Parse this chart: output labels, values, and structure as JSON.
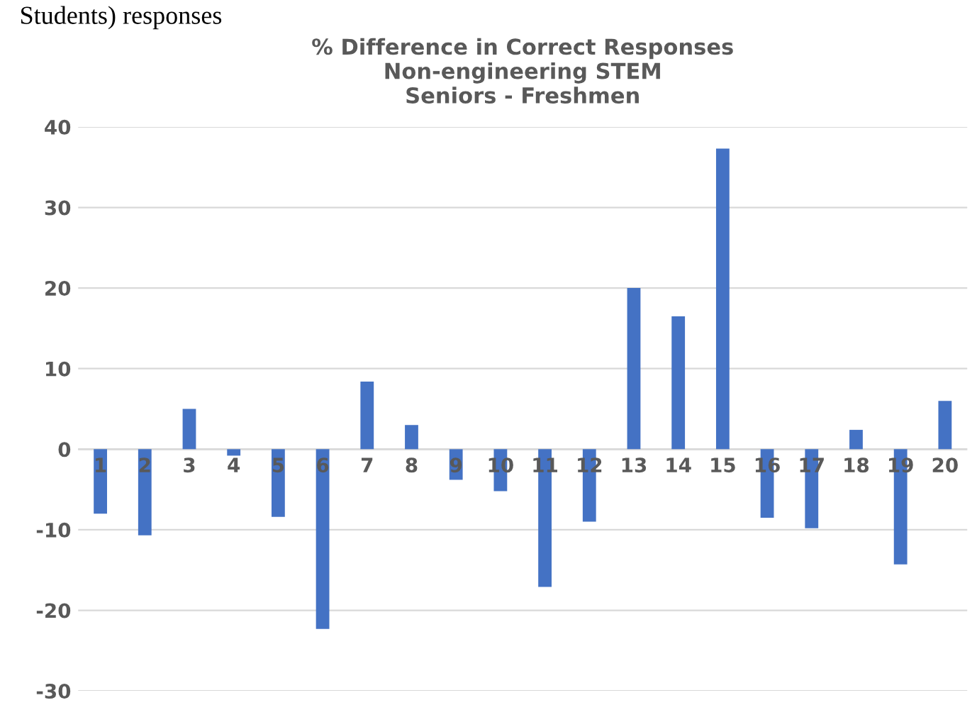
{
  "chart_data": {
    "type": "bar",
    "title": "% Difference in Correct Responses\nNon-engineering STEM\nSeniors - Freshmen",
    "annotations": [
      "Students) responses"
    ],
    "categories": [
      "1",
      "2",
      "3",
      "4",
      "5",
      "6",
      "7",
      "8",
      "9",
      "10",
      "11",
      "12",
      "13",
      "14",
      "15",
      "16",
      "17",
      "18",
      "19",
      "20"
    ],
    "series": [
      {
        "color": "#4472c4",
        "values": [
          -8.0,
          -10.7,
          5.0,
          -0.8,
          -8.4,
          -22.3,
          8.4,
          3.0,
          -3.8,
          -5.2,
          -17.1,
          -9.0,
          20.0,
          16.5,
          37.3,
          -8.5,
          -9.8,
          2.4,
          -14.3,
          6.0
        ]
      }
    ],
    "ylim": [
      -30,
      40
    ],
    "yticks": [
      -30,
      -20,
      -10,
      0,
      10,
      20,
      30,
      40
    ],
    "grid": "y",
    "legend": false
  }
}
